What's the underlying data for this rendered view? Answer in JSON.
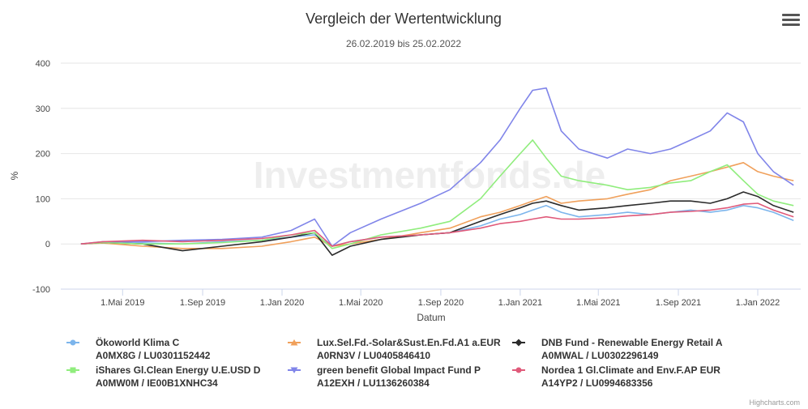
{
  "chart_data": {
    "type": "line",
    "title": "Vergleich der Wertentwicklung",
    "subtitle": "26.02.2019 bis 25.02.2022",
    "xlabel": "Datum",
    "ylabel": "%",
    "ylim": [
      -100,
      400
    ],
    "y_ticks": [
      -100,
      0,
      100,
      200,
      300,
      400
    ],
    "x_ticks": [
      {
        "date": "2019-05-01",
        "label": "1.Mai 2019"
      },
      {
        "date": "2019-09-01",
        "label": "1.Sep 2019"
      },
      {
        "date": "2020-01-01",
        "label": "1.Jan 2020"
      },
      {
        "date": "2020-05-01",
        "label": "1.Mai 2020"
      },
      {
        "date": "2020-09-01",
        "label": "1.Sep 2020"
      },
      {
        "date": "2021-01-01",
        "label": "1.Jan 2021"
      },
      {
        "date": "2021-05-01",
        "label": "1.Mai 2021"
      },
      {
        "date": "2021-09-01",
        "label": "1.Sep 2021"
      },
      {
        "date": "2022-01-01",
        "label": "1.Jan 2022"
      }
    ],
    "grid": true,
    "legend_position": "bottom",
    "x": [
      "2019-02-26",
      "2019-04-01",
      "2019-06-01",
      "2019-08-01",
      "2019-10-01",
      "2019-12-01",
      "2020-01-15",
      "2020-02-20",
      "2020-03-18",
      "2020-04-15",
      "2020-06-01",
      "2020-08-01",
      "2020-09-15",
      "2020-11-01",
      "2020-12-01",
      "2021-01-01",
      "2021-01-20",
      "2021-02-10",
      "2021-03-05",
      "2021-04-01",
      "2021-05-15",
      "2021-06-15",
      "2021-07-20",
      "2021-08-20",
      "2021-09-20",
      "2021-10-20",
      "2021-11-15",
      "2021-12-10",
      "2022-01-01",
      "2022-01-25",
      "2022-02-25"
    ],
    "series": [
      {
        "name": "Ökoworld Klima C",
        "line2": "A0MX8G / LU0301152442",
        "color": "#7cb5ec",
        "symbol": "circle",
        "values": [
          0,
          3,
          2,
          0,
          5,
          8,
          15,
          20,
          -5,
          5,
          15,
          20,
          25,
          40,
          55,
          65,
          75,
          85,
          70,
          60,
          65,
          70,
          65,
          70,
          75,
          70,
          75,
          85,
          80,
          70,
          52
        ]
      },
      {
        "name": "Lux.Sel.Fd.-Solar&Sust.En.Fd.A1 a.EUR",
        "line2": "A0RN3V / LU0405846410",
        "color": "#f0a05b",
        "symbol": "triangle",
        "values": [
          0,
          2,
          -5,
          -10,
          -10,
          -5,
          5,
          15,
          -5,
          0,
          10,
          25,
          35,
          60,
          70,
          85,
          95,
          105,
          90,
          95,
          100,
          110,
          120,
          140,
          150,
          160,
          170,
          180,
          160,
          150,
          140
        ]
      },
      {
        "name": "DNB Fund - Renewable Energy Retail A",
        "line2": "A0MWAL / LU0302296149",
        "color": "#2b2b2b",
        "symbol": "diamond",
        "values": [
          0,
          3,
          0,
          -15,
          -5,
          5,
          15,
          25,
          -25,
          -5,
          10,
          20,
          25,
          50,
          65,
          80,
          90,
          95,
          85,
          75,
          80,
          85,
          90,
          95,
          95,
          90,
          100,
          115,
          105,
          85,
          70
        ]
      },
      {
        "name": "iShares Gl.Clean Energy U.E.USD D",
        "line2": "A0MW0M / IE00B1XNHC34",
        "color": "#90ed7d",
        "symbol": "square",
        "values": [
          0,
          3,
          0,
          0,
          3,
          8,
          20,
          25,
          -10,
          0,
          20,
          35,
          50,
          100,
          150,
          200,
          230,
          190,
          150,
          140,
          130,
          120,
          125,
          135,
          140,
          160,
          175,
          140,
          110,
          95,
          85
        ]
      },
      {
        "name": "green benefit Global Impact Fund P",
        "line2": "A12EXH / LU1136260384",
        "color": "#8085e9",
        "symbol": "triangle-down",
        "values": [
          0,
          5,
          5,
          8,
          10,
          15,
          30,
          55,
          -5,
          25,
          55,
          90,
          120,
          180,
          230,
          300,
          340,
          345,
          250,
          210,
          190,
          210,
          200,
          210,
          230,
          250,
          290,
          270,
          200,
          160,
          130
        ]
      },
      {
        "name": "Nordea 1 Gl.Climate and Env.F.AP EUR",
        "line2": "A14YP2 / LU0994683356",
        "color": "#e05a7a",
        "symbol": "circle",
        "values": [
          0,
          5,
          8,
          5,
          8,
          12,
          20,
          30,
          -5,
          5,
          15,
          20,
          25,
          35,
          45,
          50,
          55,
          60,
          55,
          55,
          58,
          62,
          65,
          70,
          72,
          75,
          80,
          88,
          90,
          75,
          60
        ]
      }
    ]
  },
  "watermark": "Investmentfonds.de",
  "credits": "Highcharts.com",
  "menu_icon": "hamburger-menu-icon"
}
